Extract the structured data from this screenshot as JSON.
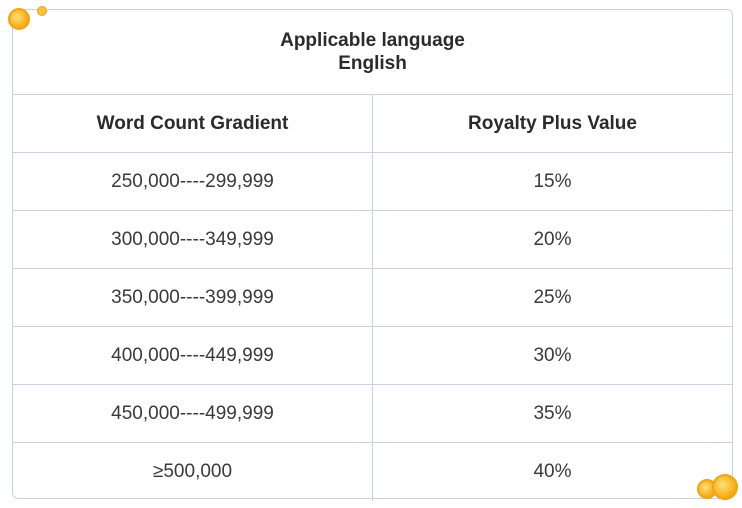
{
  "header": {
    "title": "Applicable language",
    "language": "English"
  },
  "columns": {
    "left": "Word Count Gradient",
    "right": "Royalty Plus Value"
  },
  "rows": [
    {
      "range": "250,000----299,999",
      "value": "15%"
    },
    {
      "range": "300,000----349,999",
      "value": "20%"
    },
    {
      "range": "350,000----399,999",
      "value": "25%"
    },
    {
      "range": "400,000----449,999",
      "value": "30%"
    },
    {
      "range": "450,000----499,999",
      "value": "35%"
    },
    {
      "range": "≥500,000",
      "value": "40%"
    }
  ],
  "colors": {
    "border": "#c8d2de",
    "coin": "#f7b21c"
  }
}
